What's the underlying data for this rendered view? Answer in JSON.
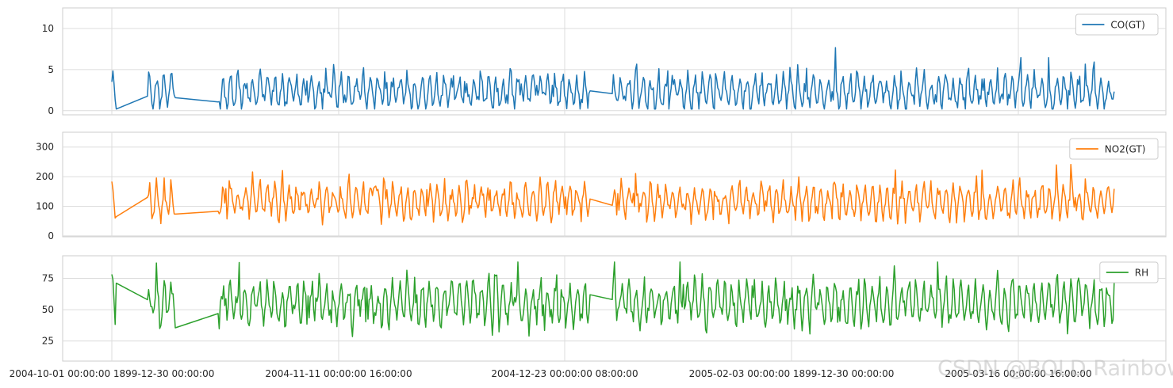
{
  "chart_data": [
    {
      "type": "line",
      "series": [
        {
          "name": "CO(GT)",
          "color": "#1f77b4"
        }
      ],
      "yticks": [
        0,
        5,
        10
      ],
      "ylim": [
        -0.5,
        12.5
      ],
      "legend": "top-right",
      "grid": true
    },
    {
      "type": "line",
      "series": [
        {
          "name": "NO2(GT)",
          "color": "#ff7f0e"
        }
      ],
      "yticks": [
        0,
        100,
        200,
        300
      ],
      "ylim": [
        -3,
        350
      ],
      "legend": "top-right",
      "grid": true
    },
    {
      "type": "line",
      "series": [
        {
          "name": "RH",
          "color": "#2ca02c"
        }
      ],
      "yticks": [
        25,
        50,
        75
      ],
      "ylim": [
        9,
        93
      ],
      "legend": "top-right",
      "grid": true
    }
  ],
  "xtick_labels": [
    "2004-10-01 00:00:00 1899-12-30 00:00:00",
    "2004-11-11 00:00:00 16:00:00",
    "2004-12-23 00:00:00 08:00:00",
    "2005-02-03 00:00:00 1899-12-30 00:00:00",
    "2005-03-16 00:00:00 16:00:00"
  ],
  "watermark": "CSDN @BOLD Rainbow"
}
